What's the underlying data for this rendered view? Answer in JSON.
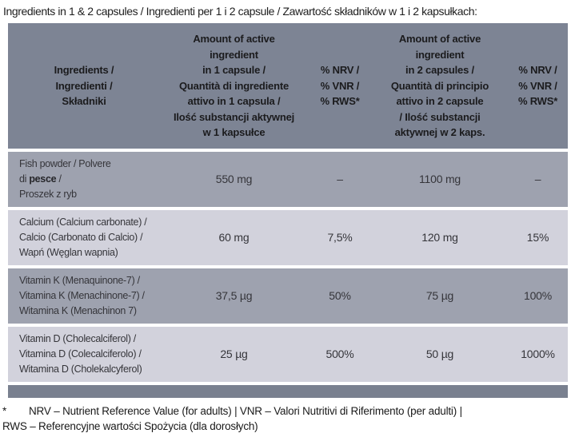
{
  "title": "Ingredients in 1 & 2 capsules / Ingredienti per 1 i 2 capsule / Zawartość składników w 1 i 2 kapsułkach:",
  "colors": {
    "header_bg": "#7d8494",
    "row_odd_bg": "#9ea2af",
    "row_even_bg": "#d2d2dc",
    "bottom_bar": "#79808f"
  },
  "table": {
    "headers": {
      "ingredients": "Ingredients /\nIngredienti /\nSkładniki",
      "amount_1cap": "Amount of active\ningredient\nin 1 capsule /\nQuantità di ingrediente\nattivo in 1 capsula /\nIlość substancji aktywnej\nw 1 kapsułce",
      "nrv_1cap": "% NRV /\n% VNR /\n% RWS*",
      "amount_2cap": "Amount of active\ningredient\nin 2 capsules /\nQuantità di principio\nattivo in 2 capsule\n/ Ilość substancji\naktywnej w 2 kaps.",
      "nrv_2cap": "% NRV /\n% VNR /\n% RWS*"
    },
    "rows": [
      {
        "name_pre": "Fish powder / Polvere\ndi ",
        "name_bold": "pesce",
        "name_post": " /\nProszek z ryb",
        "amount_1cap": "550 mg",
        "nrv_1cap": "–",
        "amount_2cap": "1100 mg",
        "nrv_2cap": "–"
      },
      {
        "name_pre": "Calcium (Calcium carbonate) /\nCalcio (Carbonato di Calcio) /\nWapń (Węglan wapnia)",
        "name_bold": "",
        "name_post": "",
        "amount_1cap": "60 mg",
        "nrv_1cap": "7,5%",
        "amount_2cap": "120 mg",
        "nrv_2cap": "15%"
      },
      {
        "name_pre": "Vitamin K (Menaquinone-7) /\nVitamina K (Menachinone-7) /\nWitamina K (Menachinon 7)",
        "name_bold": "",
        "name_post": "",
        "amount_1cap": "37,5 µg",
        "nrv_1cap": "50%",
        "amount_2cap": "75 µg",
        "nrv_2cap": "100%"
      },
      {
        "name_pre": "Vitamin D (Cholecalciferol) /\nVitamina D (Colecalciferolo) /\nWitamina D (Cholekalcyferol)",
        "name_bold": "",
        "name_post": "",
        "amount_1cap": "25 µg",
        "nrv_1cap": "500%",
        "amount_2cap": "50 µg",
        "nrv_2cap": "1000%"
      }
    ]
  },
  "footnote": {
    "marker": "*",
    "line1": "NRV – Nutrient Reference Value (for adults) | VNR – Valori Nutritivi di Riferimento (per adulti) |",
    "line2": "RWS – Referencyjne wartości Spożycia (dla dorosłych)"
  }
}
